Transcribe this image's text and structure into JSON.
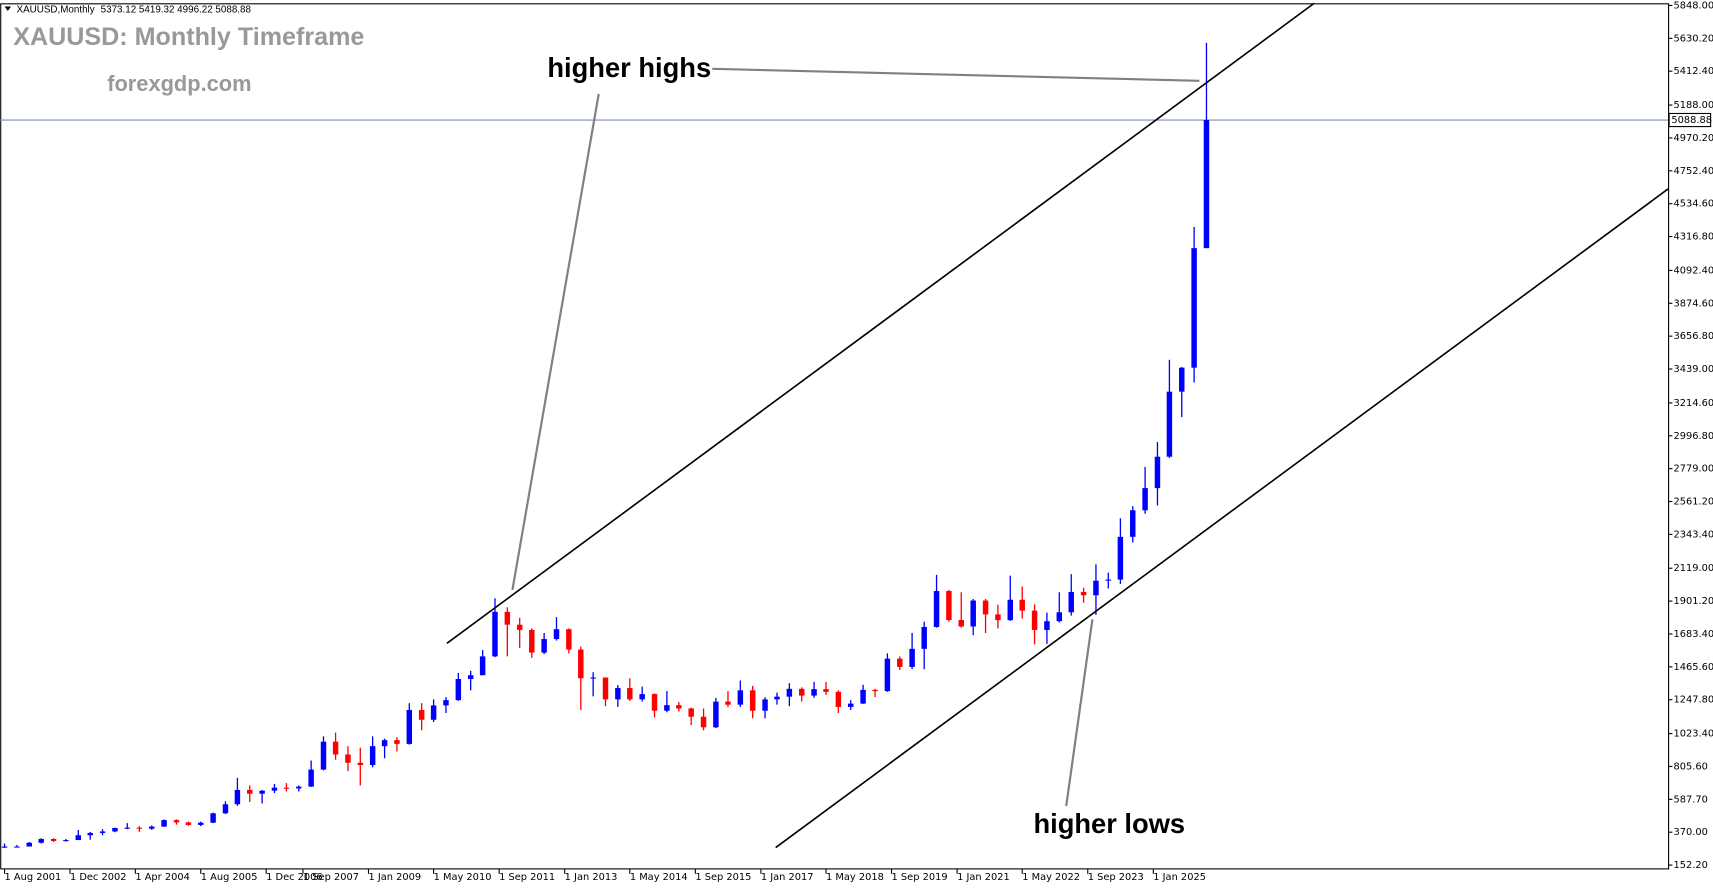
{
  "chart_data": {
    "type": "candlestick",
    "symbol": "XAUUSD,Monthly",
    "ohlc_header": "5373.12 5419.32 4996.22 5088.88",
    "title": "XAUUSD: Monthly Timeframe",
    "subtitle": "forexgdp.com",
    "annotations": [
      "higher highs",
      "higher lows"
    ],
    "bull_color": "#0000ff",
    "bear_color": "#ff0000",
    "price_line": {
      "value": 5088.88,
      "label": "5088.88"
    },
    "xlim": [
      "2001-08",
      "2035-07"
    ],
    "xticks": [
      "1 Aug 2001",
      "1 Dec 2002",
      "1 Apr 2004",
      "1 Aug 2005",
      "1 Dec 2006",
      "1 Sep 2007",
      "1 Jan 2009",
      "1 May 2010",
      "1 Sep 2011",
      "1 Jan 2013",
      "1 May 2014",
      "1 Sep 2015",
      "1 Jan 2017",
      "1 May 2018",
      "1 Sep 2019",
      "1 Jan 2021",
      "1 May 2022",
      "1 Sep 2023",
      "1 Jan 2025"
    ],
    "ylim": [
      152.2,
      5848
    ],
    "yticks": [
      {
        "value": 152.2,
        "label": "152.20"
      },
      {
        "value": 370,
        "label": "370.00"
      },
      {
        "value": 587.7,
        "label": "587.70"
      },
      {
        "value": 805.6,
        "label": "805.60"
      },
      {
        "value": 1023.4,
        "label": "1023.40"
      },
      {
        "value": 1247.8,
        "label": "1247.80"
      },
      {
        "value": 1465.6,
        "label": "1465.60"
      },
      {
        "value": 1683.4,
        "label": "1683.40"
      },
      {
        "value": 1901.2,
        "label": "1901.20"
      },
      {
        "value": 2119,
        "label": "2119.00"
      },
      {
        "value": 2343.4,
        "label": "2343.40"
      },
      {
        "value": 2561.2,
        "label": "2561.20"
      },
      {
        "value": 2779,
        "label": "2779.00"
      },
      {
        "value": 2996.8,
        "label": "2996.80"
      },
      {
        "value": 3214.6,
        "label": "3214.60"
      },
      {
        "value": 3439,
        "label": "3439.00"
      },
      {
        "value": 3656.8,
        "label": "3656.80"
      },
      {
        "value": 3874.6,
        "label": "3874.60"
      },
      {
        "value": 4092.4,
        "label": "4092.40"
      },
      {
        "value": 4316.8,
        "label": "4316.80"
      },
      {
        "value": 4534.6,
        "label": "4534.60"
      },
      {
        "value": 4752.4,
        "label": "4752.40"
      },
      {
        "value": 4970.2,
        "label": "4970.20"
      },
      {
        "value": 5188,
        "label": "5188.00"
      },
      {
        "value": 5412.4,
        "label": "5412.40"
      },
      {
        "value": 5630.2,
        "label": "5630.20"
      },
      {
        "value": 5848,
        "label": "5848.00"
      }
    ],
    "x": [
      "2001-08",
      "2001-11",
      "2002-02",
      "2002-05",
      "2002-08",
      "2002-11",
      "2003-02",
      "2003-05",
      "2003-08",
      "2003-11",
      "2004-02",
      "2004-05",
      "2004-08",
      "2004-11",
      "2005-02",
      "2005-05",
      "2005-08",
      "2005-11",
      "2006-02",
      "2006-05",
      "2006-08",
      "2006-11",
      "2007-02",
      "2007-05",
      "2007-08",
      "2007-11",
      "2008-02",
      "2008-05",
      "2008-08",
      "2008-11",
      "2009-02",
      "2009-05",
      "2009-08",
      "2009-11",
      "2010-02",
      "2010-05",
      "2010-08",
      "2010-11",
      "2011-02",
      "2011-05",
      "2011-08",
      "2011-11",
      "2012-02",
      "2012-05",
      "2012-08",
      "2012-11",
      "2013-02",
      "2013-05",
      "2013-08",
      "2013-11",
      "2014-02",
      "2014-05",
      "2014-08",
      "2014-11",
      "2015-02",
      "2015-05",
      "2015-08",
      "2015-11",
      "2016-02",
      "2016-05",
      "2016-08",
      "2016-11",
      "2017-02",
      "2017-05",
      "2017-08",
      "2017-11",
      "2018-02",
      "2018-05",
      "2018-08",
      "2018-11",
      "2019-02",
      "2019-05",
      "2019-08",
      "2019-11",
      "2020-02",
      "2020-05",
      "2020-08",
      "2020-11",
      "2021-02",
      "2021-05",
      "2021-08",
      "2021-11",
      "2022-02",
      "2022-05",
      "2022-08",
      "2022-11",
      "2023-02",
      "2023-05",
      "2023-08",
      "2023-11",
      "2024-02",
      "2024-05",
      "2024-08",
      "2024-11",
      "2025-02",
      "2025-05",
      "2025-08",
      "2025-11",
      "2026-02"
    ],
    "ohlc": [
      [
        270,
        295,
        265,
        275
      ],
      [
        275,
        285,
        270,
        275
      ],
      [
        275,
        305,
        275,
        300
      ],
      [
        300,
        330,
        295,
        325
      ],
      [
        325,
        330,
        305,
        312
      ],
      [
        312,
        325,
        308,
        318
      ],
      [
        318,
        385,
        318,
        350
      ],
      [
        350,
        372,
        320,
        365
      ],
      [
        365,
        390,
        350,
        375
      ],
      [
        375,
        400,
        370,
        398
      ],
      [
        398,
        430,
        390,
        400
      ],
      [
        400,
        410,
        372,
        393
      ],
      [
        393,
        415,
        385,
        407
      ],
      [
        407,
        455,
        405,
        450
      ],
      [
        450,
        455,
        420,
        435
      ],
      [
        435,
        440,
        412,
        418
      ],
      [
        418,
        440,
        410,
        433
      ],
      [
        433,
        500,
        430,
        495
      ],
      [
        495,
        575,
        490,
        555
      ],
      [
        555,
        730,
        545,
        650
      ],
      [
        650,
        680,
        570,
        625
      ],
      [
        625,
        650,
        560,
        645
      ],
      [
        645,
        690,
        630,
        665
      ],
      [
        665,
        695,
        640,
        660
      ],
      [
        660,
        680,
        640,
        672
      ],
      [
        672,
        845,
        670,
        785
      ],
      [
        785,
        1005,
        780,
        970
      ],
      [
        970,
        1030,
        850,
        885
      ],
      [
        885,
        940,
        775,
        830
      ],
      [
        830,
        930,
        680,
        815
      ],
      [
        815,
        1005,
        800,
        940
      ],
      [
        940,
        990,
        860,
        980
      ],
      [
        980,
        1000,
        905,
        955
      ],
      [
        955,
        1225,
        950,
        1180
      ],
      [
        1180,
        1225,
        1045,
        1115
      ],
      [
        1115,
        1250,
        1100,
        1210
      ],
      [
        1210,
        1265,
        1160,
        1245
      ],
      [
        1245,
        1425,
        1240,
        1385
      ],
      [
        1385,
        1440,
        1310,
        1410
      ],
      [
        1410,
        1577,
        1410,
        1535
      ],
      [
        1535,
        1920,
        1530,
        1830
      ],
      [
        1830,
        1860,
        1535,
        1745
      ],
      [
        1745,
        1790,
        1590,
        1710
      ],
      [
        1710,
        1720,
        1525,
        1560
      ],
      [
        1560,
        1690,
        1550,
        1650
      ],
      [
        1650,
        1795,
        1640,
        1715
      ],
      [
        1715,
        1720,
        1555,
        1580
      ],
      [
        1580,
        1600,
        1180,
        1390
      ],
      [
        1390,
        1430,
        1270,
        1395
      ],
      [
        1395,
        1395,
        1205,
        1250
      ],
      [
        1250,
        1345,
        1200,
        1325
      ],
      [
        1325,
        1390,
        1240,
        1250
      ],
      [
        1250,
        1335,
        1235,
        1285
      ],
      [
        1285,
        1290,
        1130,
        1175
      ],
      [
        1175,
        1305,
        1165,
        1212
      ],
      [
        1212,
        1232,
        1170,
        1190
      ],
      [
        1190,
        1195,
        1080,
        1135
      ],
      [
        1135,
        1190,
        1045,
        1065
      ],
      [
        1065,
        1260,
        1060,
        1235
      ],
      [
        1235,
        1305,
        1200,
        1215
      ],
      [
        1215,
        1375,
        1200,
        1310
      ],
      [
        1310,
        1340,
        1125,
        1175
      ],
      [
        1175,
        1265,
        1125,
        1250
      ],
      [
        1250,
        1295,
        1215,
        1268
      ],
      [
        1268,
        1357,
        1205,
        1320
      ],
      [
        1320,
        1330,
        1236,
        1275
      ],
      [
        1275,
        1366,
        1260,
        1318
      ],
      [
        1318,
        1365,
        1280,
        1300
      ],
      [
        1300,
        1310,
        1160,
        1200
      ],
      [
        1200,
        1245,
        1180,
        1222
      ],
      [
        1222,
        1347,
        1220,
        1313
      ],
      [
        1313,
        1320,
        1266,
        1305
      ],
      [
        1305,
        1555,
        1300,
        1520
      ],
      [
        1520,
        1535,
        1445,
        1465
      ],
      [
        1465,
        1690,
        1450,
        1585
      ],
      [
        1585,
        1765,
        1450,
        1730
      ],
      [
        1730,
        2075,
        1725,
        1968
      ],
      [
        1968,
        1975,
        1765,
        1776
      ],
      [
        1776,
        1960,
        1725,
        1733
      ],
      [
        1733,
        1915,
        1676,
        1905
      ],
      [
        1905,
        1915,
        1690,
        1813
      ],
      [
        1813,
        1877,
        1720,
        1775
      ],
      [
        1775,
        2070,
        1770,
        1910
      ],
      [
        1910,
        1998,
        1785,
        1838
      ],
      [
        1838,
        1880,
        1615,
        1710
      ],
      [
        1710,
        1825,
        1618,
        1768
      ],
      [
        1768,
        1960,
        1760,
        1827
      ],
      [
        1827,
        2080,
        1805,
        1962
      ],
      [
        1962,
        1990,
        1890,
        1940
      ],
      [
        1940,
        2145,
        1810,
        2036
      ],
      [
        2036,
        2090,
        1985,
        2044
      ],
      [
        2044,
        2450,
        2015,
        2327
      ],
      [
        2327,
        2530,
        2290,
        2503
      ],
      [
        2503,
        2790,
        2480,
        2650
      ],
      [
        2650,
        2955,
        2535,
        2858
      ],
      [
        2858,
        3500,
        2850,
        3289
      ],
      [
        3289,
        3452,
        3120,
        3448
      ],
      [
        3448,
        4380,
        3350,
        4240
      ],
      [
        4240,
        5600,
        4240,
        5088.88
      ]
    ]
  }
}
